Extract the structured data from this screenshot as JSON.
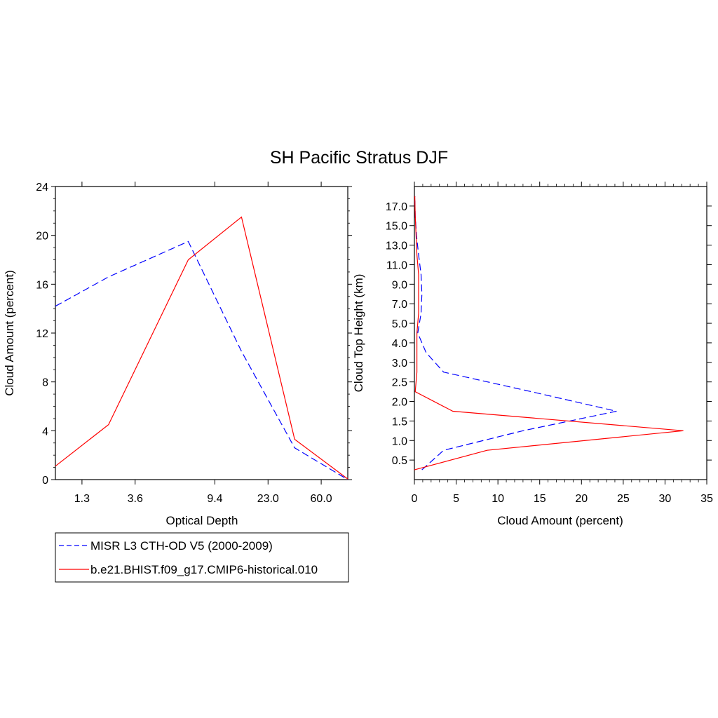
{
  "title": "SH Pacific Stratus DJF",
  "legend": [
    {
      "name": "MISR L3 CTH-OD V5 (2000-2009)",
      "color": "#0000ff",
      "dash": true
    },
    {
      "name": "b.e21.BHIST.f09_g17.CMIP6-historical.010",
      "color": "#ff0000",
      "dash": false
    }
  ],
  "chart_data": [
    {
      "type": "line",
      "xlabel": "Optical Depth",
      "ylabel": "Cloud Amount (percent)",
      "x_tick_labels": [
        "1.3",
        "3.6",
        "9.4",
        "23.0",
        "60.0"
      ],
      "x": [
        0.3,
        1.3,
        2.5,
        3.6,
        5.0,
        6.5,
        9.4,
        15.0,
        23.0,
        41.0,
        60.0,
        80.0
      ],
      "ylim": [
        0,
        24
      ],
      "y_ticks": [
        0,
        4,
        8,
        12,
        16,
        20,
        24
      ],
      "series": [
        {
          "name": "MISR L3 CTH-OD V5 (2000-2009)",
          "x": [
            0.3,
            2.5,
            6.5,
            15.0,
            41.0,
            80.0
          ],
          "values": [
            14.2,
            16.6,
            19.5,
            10.5,
            2.6,
            0.0
          ]
        },
        {
          "name": "b.e21.BHIST.f09_g17.CMIP6-historical.010",
          "x": [
            0.3,
            2.5,
            6.5,
            15.0,
            41.0,
            80.0
          ],
          "values": [
            1.1,
            4.5,
            18.0,
            21.5,
            3.3,
            0.05
          ]
        }
      ]
    },
    {
      "type": "line",
      "xlabel": "Cloud Amount (percent)",
      "ylabel": "Cloud Top Height (km)",
      "y_categories": [
        "0.5",
        "1.0",
        "1.5",
        "2.0",
        "2.5",
        "3.0",
        "4.0",
        "5.0",
        "7.0",
        "9.0",
        "11.0",
        "13.0",
        "15.0",
        "17.0"
      ],
      "xlim": [
        0,
        35
      ],
      "x_ticks": [
        0,
        5,
        10,
        15,
        20,
        25,
        30,
        35
      ],
      "series": [
        {
          "name": "MISR L3 CTH-OD V5 (2000-2009)",
          "height": [
            0.25,
            0.75,
            1.25,
            1.75,
            2.25,
            2.75,
            3.5,
            4.5,
            6.0,
            8.0,
            10.0,
            12.0,
            14.0,
            16.0,
            18.0
          ],
          "values": [
            0.9,
            3.5,
            13.0,
            24.2,
            14.0,
            3.5,
            1.4,
            0.4,
            0.8,
            0.9,
            0.8,
            0.5,
            0.25,
            0.1,
            0.05
          ]
        },
        {
          "name": "b.e21.BHIST.f09_g17.CMIP6-historical.010",
          "height": [
            0.25,
            0.75,
            1.25,
            1.75,
            2.25,
            2.75,
            3.5,
            4.5,
            6.0,
            8.0,
            10.0,
            12.0,
            14.0,
            16.0,
            18.0
          ],
          "values": [
            0.0,
            8.7,
            32.2,
            4.6,
            0.1,
            0.3,
            0.3,
            0.3,
            0.5,
            0.5,
            0.5,
            0.3,
            0.2,
            0.1,
            0.05
          ]
        }
      ]
    }
  ]
}
